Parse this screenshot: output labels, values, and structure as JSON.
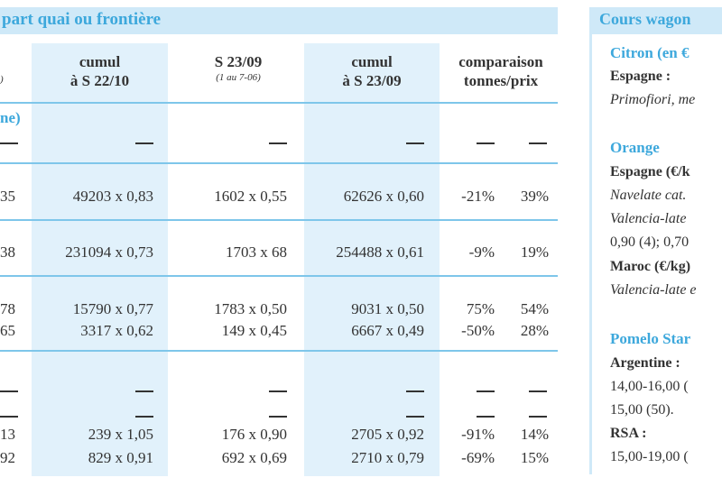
{
  "left_panel": {
    "title": "part quai ou frontière",
    "sub_label": "ne)",
    "columns": [
      {
        "title": "cumul",
        "line2": "à S 22/10",
        "sub": ""
      },
      {
        "title": "S 23/09",
        "line2": "",
        "sub": "(1 au 7-06)"
      },
      {
        "title": "cumul",
        "line2": "à S 23/09",
        "sub": ""
      },
      {
        "title": "comparaison",
        "line2": "tonnes/prix",
        "sub": ""
      }
    ],
    "rows": [
      {
        "left": "35",
        "c1": "49203 x 0,83",
        "c2": "1602 x 0,55",
        "c3": "62626 x 0,60",
        "pct_t": "-21%",
        "pct_p": "39%"
      },
      {
        "left": "38",
        "c1": "231094 x 0,73",
        "c2": "1703 x 68",
        "c3": "254488 x 0,61",
        "pct_t": "-9%",
        "pct_p": "19%"
      },
      {
        "left": "78",
        "c1": "15790 x 0,77",
        "c2": "1783 x 0,50",
        "c3": "9031 x 0,50",
        "pct_t": "75%",
        "pct_p": "54%"
      },
      {
        "left": "65",
        "c1": "3317 x 0,62",
        "c2": "149 x 0,45",
        "c3": "6667 x 0,49",
        "pct_t": "-50%",
        "pct_p": "28%"
      },
      {
        "left": "13",
        "c1": "239 x 1,05",
        "c2": "176 x 0,90",
        "c3": "2705 x 0,92",
        "pct_t": "-91%",
        "pct_p": "14%"
      },
      {
        "left": "92",
        "c1": "829 x 0,91",
        "c2": "692 x 0,69",
        "c3": "2710 x 0,79",
        "pct_t": "-69%",
        "pct_p": "15%"
      }
    ]
  },
  "right_panel": {
    "title": "Cours wagon",
    "lines": [
      {
        "text": "Citron (en €",
        "style": "sect"
      },
      {
        "text": "Espagne :",
        "style": "bold"
      },
      {
        "text": "Primofiori, me",
        "style": "ital"
      },
      {
        "text": "Orange",
        "style": "sect"
      },
      {
        "text": "Espagne (€/k",
        "style": "bold"
      },
      {
        "text": "Navelate cat.",
        "style": "ital"
      },
      {
        "text": "Valencia-late",
        "style": "ital"
      },
      {
        "text": "0,90 (4); 0,70",
        "style": "normal"
      },
      {
        "text": "Maroc (€/kg)",
        "style": "bold"
      },
      {
        "text": "Valencia-late e",
        "style": "ital"
      },
      {
        "text": "Pomelo Star",
        "style": "sect"
      },
      {
        "text": "Argentine :",
        "style": "bold"
      },
      {
        "text": "14,00-16,00 (",
        "style": "normal"
      },
      {
        "text": "15,00 (50).",
        "style": "normal"
      },
      {
        "text": "RSA :",
        "style": "bold"
      },
      {
        "text": "15,00-19,00 (",
        "style": "normal"
      }
    ]
  }
}
